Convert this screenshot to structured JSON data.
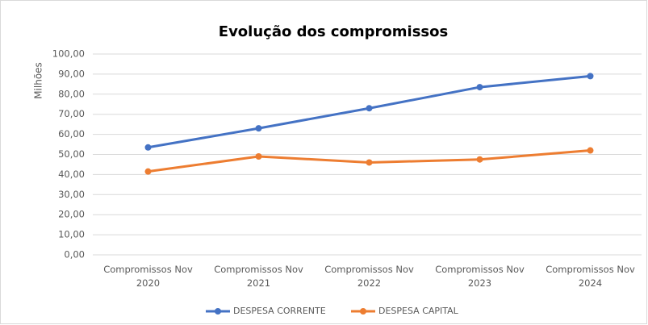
{
  "chart_data": {
    "type": "line",
    "title": "Evolução dos compromissos",
    "y_label": "Milhões",
    "categories": [
      "Compromissos Nov 2020",
      "Compromissos Nov 2021",
      "Compromissos Nov 2022",
      "Compromissos Nov 2023",
      "Compromissos Nov 2024"
    ],
    "series": [
      {
        "name": "DESPESA CORRENTE",
        "color": "#4472c4",
        "values": [
          53.5,
          63,
          73,
          83.5,
          89
        ]
      },
      {
        "name": "DESPESA CAPITAL",
        "color": "#ed7d31",
        "values": [
          41.5,
          49,
          46,
          47.5,
          52
        ]
      }
    ],
    "ylim": [
      0,
      100
    ],
    "yticks": [
      {
        "value": 0,
        "label": "0,00"
      },
      {
        "value": 10,
        "label": "10,00"
      },
      {
        "value": 20,
        "label": "20,00"
      },
      {
        "value": 30,
        "label": "30,00"
      },
      {
        "value": 40,
        "label": "40,00"
      },
      {
        "value": 50,
        "label": "50,00"
      },
      {
        "value": 60,
        "label": "60,00"
      },
      {
        "value": 70,
        "label": "70,00"
      },
      {
        "value": 80,
        "label": "80,00"
      },
      {
        "value": 90,
        "label": "90,00"
      },
      {
        "value": 100,
        "label": "100,00"
      }
    ],
    "grid": true,
    "legend": "bottom"
  }
}
